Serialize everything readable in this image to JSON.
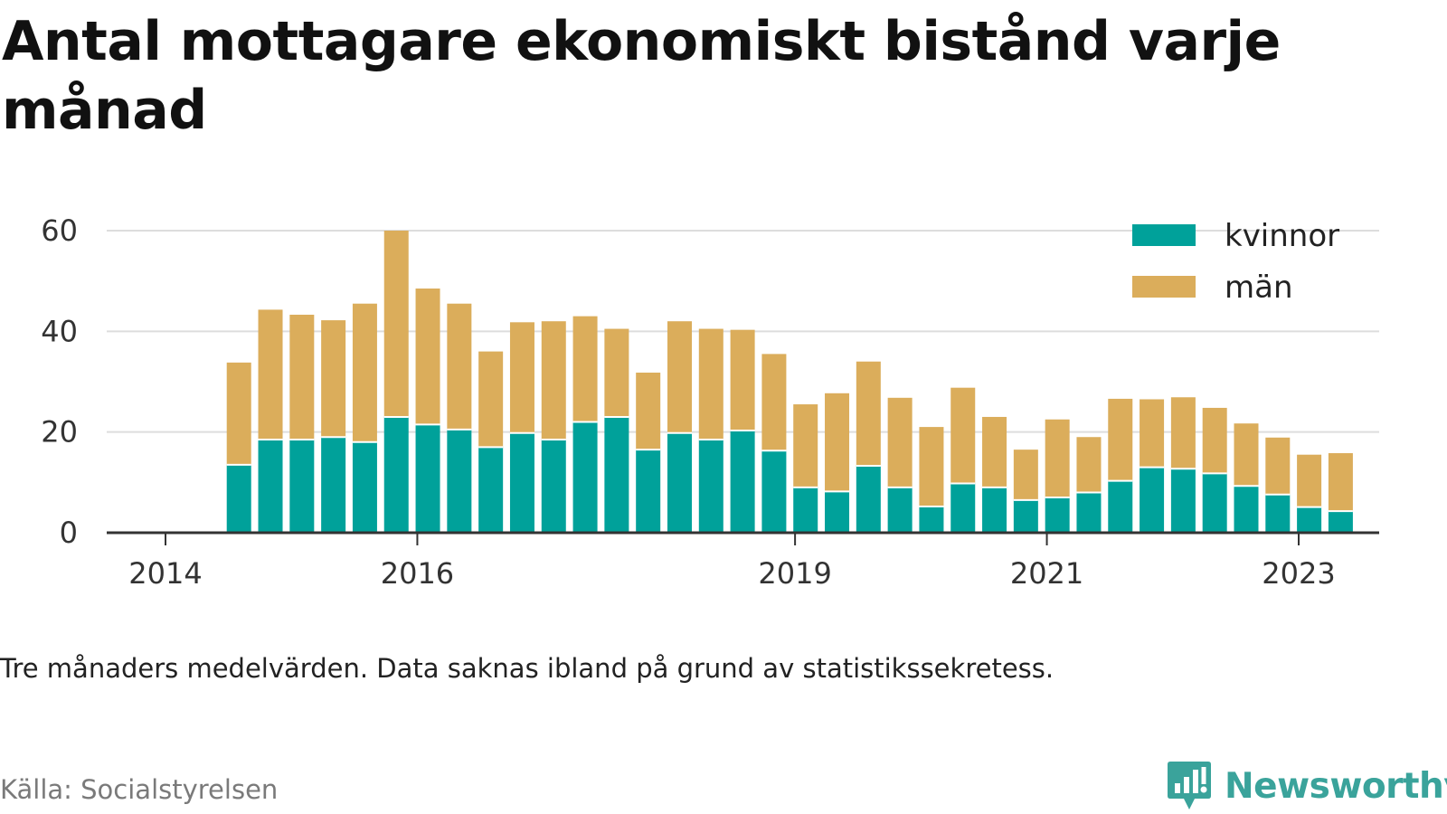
{
  "title": "Antal mottagare ekonomiskt bistånd varje månad",
  "note": "Tre månaders medelvärden. Data saknas ibland på grund av statistikssekretess.",
  "source": "Källa: Socialstyrelsen",
  "brand": {
    "name": "Newsworthy",
    "icon": "newsworthy-logo-icon",
    "color": "#3aa39b"
  },
  "chart_data": {
    "type": "bar",
    "stacked": true,
    "title": "Antal mottagare ekonomiskt bistånd varje månad",
    "xlabel": "",
    "ylabel": "",
    "ylim": [
      0,
      60
    ],
    "yticks": [
      0,
      20,
      40,
      60
    ],
    "xticks": [
      "2014",
      "2016",
      "2019",
      "2021",
      "2023"
    ],
    "grid": true,
    "legend_position": "top-right",
    "x": [
      "2014-08",
      "2014-11",
      "2015-02",
      "2015-05",
      "2015-08",
      "2015-11",
      "2016-02",
      "2016-05",
      "2016-08",
      "2016-11",
      "2017-02",
      "2017-05",
      "2017-08",
      "2017-11",
      "2018-02",
      "2018-05",
      "2018-08",
      "2018-11",
      "2019-02",
      "2019-05",
      "2019-08",
      "2019-11",
      "2020-02",
      "2020-05",
      "2020-08",
      "2020-11",
      "2021-02",
      "2021-05",
      "2021-08",
      "2021-11",
      "2022-02",
      "2022-05",
      "2022-08",
      "2022-11",
      "2023-02",
      "2023-05"
    ],
    "series": [
      {
        "name": "kvinnor",
        "color": "#00a19a",
        "values": [
          13.5,
          18.5,
          18.5,
          19,
          18,
          23,
          21.5,
          20.5,
          17,
          19.8,
          18.5,
          22,
          23,
          16.5,
          19.8,
          18.5,
          20.3,
          16.3,
          9,
          8.2,
          13.3,
          9,
          5.2,
          9.8,
          9,
          6.5,
          7,
          8,
          10.3,
          13,
          12.7,
          11.8,
          9.3,
          7.6,
          5.1,
          4.3
        ]
      },
      {
        "name": "män",
        "color": "#dbad5b",
        "values": [
          20.3,
          25.8,
          24.8,
          23.2,
          27.5,
          37,
          27,
          25,
          19,
          22,
          23.5,
          21,
          17.5,
          15.3,
          22.2,
          22,
          20,
          19.2,
          16.5,
          19.5,
          20.7,
          17.8,
          15.8,
          19,
          14,
          10,
          15.5,
          11,
          16.3,
          13.5,
          14.2,
          13,
          12.4,
          11.3,
          10.4,
          11.5
        ]
      }
    ]
  }
}
